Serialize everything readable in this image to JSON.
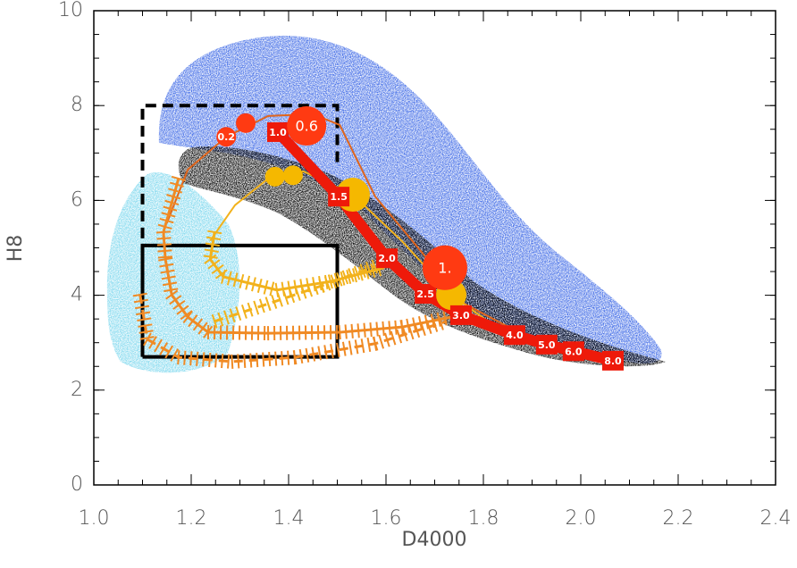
{
  "chart_data": {
    "type": "line",
    "xlabel": "D4000",
    "ylabel": "H8",
    "xlim": [
      1.0,
      2.4
    ],
    "ylim": [
      0,
      10
    ],
    "xticks": [
      {
        "value": 1.0,
        "label": "1.0"
      },
      1.2,
      1.4,
      1.6,
      1.8,
      {
        "value": 2.0,
        "label": "2.0"
      },
      2.2,
      2.4
    ],
    "yticks": [
      0,
      2,
      4,
      6,
      8,
      10
    ],
    "xminor": 0.05,
    "yminor": 0.5,
    "shapes": [
      {
        "x": [
          1.1,
          1.1,
          1.5,
          1.5,
          1.1
        ],
        "y": [
          2.7,
          5.05,
          5.05,
          2.7,
          2.7
        ],
        "line": "solid",
        "color": "#000000"
      },
      {
        "x": [
          1.1,
          1.1,
          1.5,
          1.5
        ],
        "y": [
          5.2,
          8.0,
          8.0,
          6.8
        ],
        "line": "dashed",
        "color": "#000000"
      }
    ],
    "series": [
      {
        "color": "#e0651c",
        "line": "solid",
        "width": 2,
        "x": [
          1.15,
          1.193,
          1.272,
          1.358,
          1.45,
          1.505,
          1.578,
          1.67,
          1.761,
          1.872,
          1.982,
          2.073
        ],
        "values": [
          5.52,
          6.65,
          7.34,
          7.78,
          7.82,
          7.59,
          6.08,
          4.95,
          3.82,
          3.22,
          2.88,
          2.6
        ]
      },
      {
        "color": "#f2b21c",
        "line": "solid",
        "width": 2,
        "x": [
          1.239,
          1.29,
          1.358,
          1.431,
          1.532,
          1.633,
          1.734,
          1.835
        ],
        "values": [
          5.15,
          5.9,
          6.46,
          6.61,
          6.12,
          5.14,
          4.01,
          3.26
        ]
      },
      {
        "color": "#f08a24",
        "line": "solid",
        "width": 3,
        "hatch": true,
        "x": [
          1.174,
          1.143,
          1.147,
          1.16,
          1.193,
          1.235,
          1.358,
          1.505,
          1.633,
          1.734
        ],
        "values": [
          6.46,
          5.33,
          4.76,
          4.01,
          3.54,
          3.22,
          3.2,
          3.22,
          3.33,
          3.54
        ]
      },
      {
        "color": "#f08a24",
        "line": "dashed",
        "width": 3,
        "hatch": true,
        "x": [
          1.095,
          1.11,
          1.174,
          1.284,
          1.413,
          1.578,
          1.725
        ],
        "values": [
          4.01,
          3.07,
          2.69,
          2.6,
          2.69,
          2.98,
          3.45
        ]
      },
      {
        "color": "#f2b21c",
        "line": "solid",
        "width": 3,
        "hatch": true,
        "x": [
          1.248,
          1.239,
          1.266,
          1.376,
          1.486,
          1.596
        ],
        "values": [
          5.33,
          4.76,
          4.39,
          4.11,
          4.29,
          4.58
        ]
      },
      {
        "color": "#f2b21c",
        "line": "dashed",
        "width": 3,
        "hatch": true,
        "x": [
          1.248,
          1.358,
          1.468,
          1.578
        ],
        "values": [
          3.45,
          3.82,
          4.2,
          4.61
        ]
      },
      {
        "color": "#f5b800",
        "line": "none",
        "marker": "circle",
        "x": [
          1.372,
          1.409,
          1.532,
          1.734
        ],
        "values": [
          6.5,
          6.53,
          6.12,
          4.01
        ],
        "sizes": [
          11,
          11,
          19,
          17
        ]
      },
      {
        "color": "#ee1a0a",
        "line": "solid",
        "width": 12,
        "marker": "square",
        "x": [
          1.378,
          1.503,
          1.602,
          1.681,
          1.754,
          1.864,
          1.93,
          1.985,
          2.066
        ],
        "values": [
          7.44,
          6.08,
          4.78,
          4.03,
          3.58,
          3.16,
          2.96,
          2.82,
          2.62
        ],
        "labels": [
          "1.0",
          "1.5",
          "2.0",
          "2.5",
          "3.0",
          "4.0",
          "5.0",
          "6.0",
          "8.0"
        ]
      },
      {
        "color": "#ff3a12",
        "line": "none",
        "marker": "circle",
        "x": [
          1.272,
          1.312,
          1.437,
          1.721
        ],
        "values": [
          7.34,
          7.63,
          7.57,
          4.58
        ],
        "sizes": [
          11,
          11,
          22,
          25
        ],
        "labels": [
          "0.2",
          null,
          "0.6",
          "1."
        ]
      }
    ]
  }
}
